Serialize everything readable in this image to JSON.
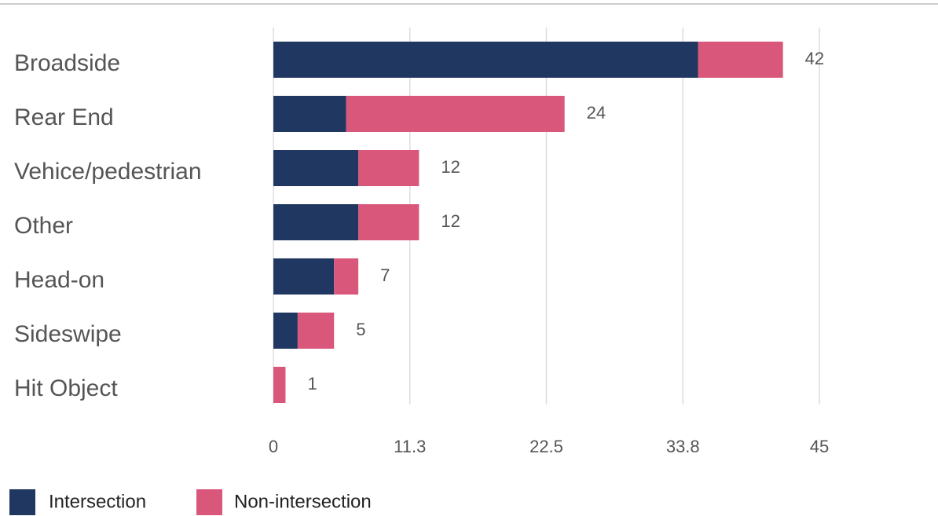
{
  "chart_data": {
    "type": "stacked-barh",
    "categories": [
      "Broadside",
      "Rear End",
      "Vehice/pedestrian",
      "Other",
      "Head-on",
      "Sideswipe",
      "Hit Object"
    ],
    "series": [
      {
        "name": "Intersection",
        "color": "#1f3761",
        "values": [
          35,
          6,
          7,
          7,
          5,
          2,
          0
        ]
      },
      {
        "name": "Non-intersection",
        "color": "#d9577b",
        "values": [
          7,
          18,
          5,
          5,
          2,
          3,
          1
        ]
      }
    ],
    "totals": [
      42,
      24,
      12,
      12,
      7,
      5,
      1
    ],
    "xlim": [
      0,
      45
    ],
    "xticks": [
      0,
      {
        "value": 11.25,
        "label": "11.3"
      },
      22.5,
      {
        "value": 33.75,
        "label": "33.8"
      },
      45
    ],
    "grid": true,
    "legend": "bottom"
  }
}
